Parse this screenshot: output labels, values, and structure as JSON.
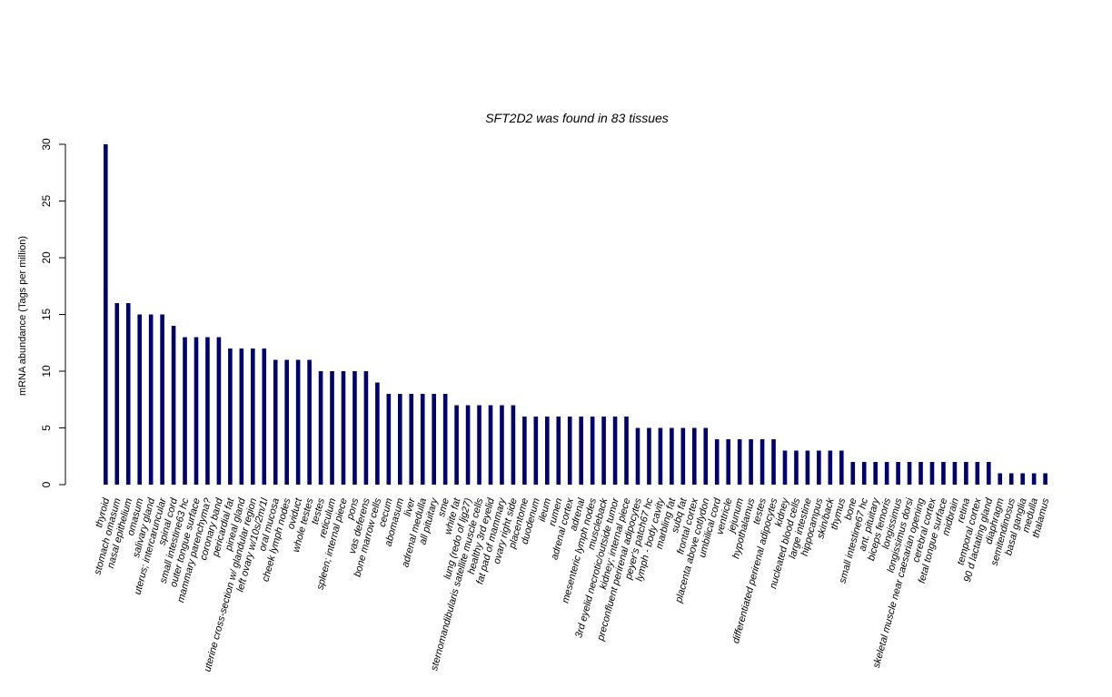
{
  "chart_data": {
    "type": "bar",
    "title": "SFT2D2  was found in  83  tissues",
    "xlabel": "",
    "ylabel": "mRNA abundance (Tags per million)",
    "ylim": [
      0,
      30
    ],
    "yticks": [
      0,
      5,
      10,
      15,
      20,
      25,
      30
    ],
    "bar_color": "#000066",
    "grid": false,
    "categories": [
      "thyroid",
      "stomach omasum",
      "nasal epithelium",
      "omasum",
      "salivary gland",
      "uterus; intercaruncular",
      "spinal cord",
      "small intestine63 hc",
      "outer tongue surface",
      "mammary parenchyma?",
      "coronary band",
      "pericardial fat",
      "pineal gland",
      "uterine cross-section w/ glandular region",
      "left ovary w/10s/2m/1l",
      "oral mucosa",
      "cheek lymph nodes",
      "oviduct",
      "whole testes",
      "testes",
      "reticulum",
      "spleen; internal piece",
      "pons",
      "vas deferens",
      "bone marrow cells",
      "cecum",
      "abomasum",
      "liver",
      "adrenal medulla",
      "all pituitary",
      "sme",
      "white fat",
      "lung (redo of ljg27)",
      "sternomandibularis satellite muscle cells",
      "healthy 3rd eyelid",
      "fat pad of mammary",
      "ovary right side",
      "placentome",
      "duodenum",
      "ileum",
      "rumen",
      "adrenal cortex",
      "adrenal",
      "mesenteric lymph nodes",
      "muscleback",
      "3rd eyelid necrotic/outside tumor",
      "kidney; internal piece",
      "preconfluent perirenal adipocytes",
      "peyer's patch67 hc",
      "lymph - body cavity",
      "marbling fat",
      "subq fat",
      "frontal cortex",
      "placenta above cotlydon",
      "umbilical cord",
      "ventricle",
      "jejunum",
      "hypothalamus",
      "testes",
      "differentiated perirenal adipocytes",
      "kidney",
      "nucleated blood cells",
      "large intestine",
      "hippocampus",
      "skin/back",
      "thymus",
      "bone",
      "small intestine67 hc",
      "ant. pituitary",
      "biceps femoris",
      "longissimus",
      "longissimus dorsi",
      "skeletal muscle near caesarian opening",
      "cerebral cortex",
      "fetal tongue surface",
      "midbrain",
      "retina",
      "temporal cortex",
      "90 d lactating gland",
      "diaphragm",
      "semitendinosus",
      "basal ganglia",
      "medulla",
      "thalamus"
    ],
    "values": [
      30,
      16,
      16,
      15,
      15,
      15,
      14,
      13,
      13,
      13,
      13,
      12,
      12,
      12,
      12,
      11,
      11,
      11,
      11,
      10,
      10,
      10,
      10,
      10,
      9,
      8,
      8,
      8,
      8,
      8,
      8,
      7,
      7,
      7,
      7,
      7,
      7,
      6,
      6,
      6,
      6,
      6,
      6,
      6,
      6,
      6,
      6,
      5,
      5,
      5,
      5,
      5,
      5,
      5,
      4,
      4,
      4,
      4,
      4,
      4,
      3,
      3,
      3,
      3,
      3,
      3,
      2,
      2,
      2,
      2,
      2,
      2,
      2,
      2,
      2,
      2,
      2,
      2,
      2,
      1,
      1,
      1,
      1,
      1
    ]
  }
}
